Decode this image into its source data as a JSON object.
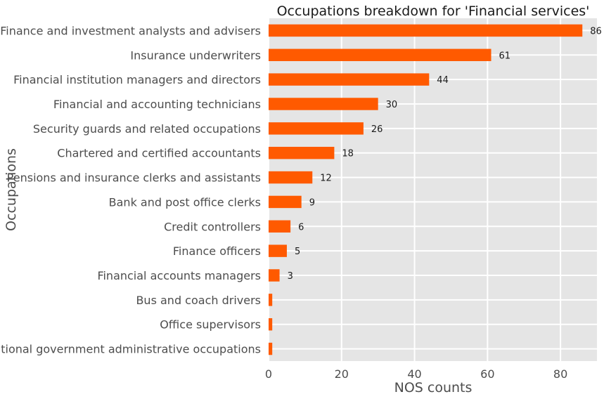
{
  "chart_data": {
    "type": "bar",
    "orientation": "horizontal",
    "title": "Occupations breakdown for 'Financial services'",
    "xlabel": "NOS counts",
    "ylabel": "Occupations",
    "xlim": [
      0,
      90
    ],
    "xticks": [
      0,
      20,
      40,
      60,
      80
    ],
    "grid": true,
    "bar_color": "#ff5a00",
    "background_color": "#e5e5e5",
    "categories": [
      "Finance and investment analysts and advisers",
      "Insurance underwriters",
      "Financial institution managers and directors",
      "Financial and accounting technicians",
      "Security guards and related occupations",
      "Chartered and certified accountants",
      "Pensions and insurance clerks and assistants",
      "Bank and post office clerks",
      "Credit controllers",
      "Finance officers",
      "Financial accounts managers",
      "Bus and coach drivers",
      "Office supervisors",
      "National government administrative occupations"
    ],
    "values": [
      86,
      61,
      44,
      30,
      26,
      18,
      12,
      9,
      6,
      5,
      3,
      1,
      1,
      1
    ],
    "data_labels": [
      "86",
      "61",
      "44",
      "30",
      "26",
      "18",
      "12",
      "9",
      "6",
      "5",
      "3",
      "",
      "",
      ""
    ]
  }
}
